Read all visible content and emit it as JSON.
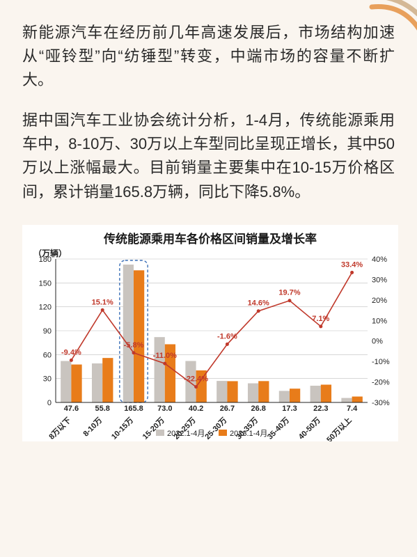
{
  "paragraphs": [
    "新能源汽车在经历前几年高速发展后，市场结构加速从“哑铃型”向“纺锤型”转变，中端市场的容量不断扩大。",
    "据中国汽车工业协会统计分析，1-4月，传统能源乘用车中，8-10万、30万以上车型同比呈现正增长，其中50万以上涨幅最大。目前销量主要集中在10-15万价格区间，累计销量165.8万辆，同比下降5.8%。"
  ],
  "chart": {
    "type": "bar+line",
    "title": "传统能源乘用车各价格区间销量及增长率",
    "y_left_unit": "（万辆）",
    "y_left_max": 180,
    "y_left_step": 30,
    "y_left_ticks": [
      0,
      30,
      60,
      90,
      120,
      150,
      180
    ],
    "y_right_max": 40,
    "y_right_min": -30,
    "y_right_step": 10,
    "y_right_ticks": [
      "40%",
      "30%",
      "20%",
      "10%",
      "0%",
      "-10%",
      "-20%",
      "-30%"
    ],
    "categories": [
      "8万以下",
      "8-10万",
      "10-15万",
      "15-20万",
      "20-25万",
      "25-30万",
      "30-35万",
      "35-40万",
      "40-50万",
      "50万以上"
    ],
    "series": [
      {
        "name": "2022.1-4月",
        "color": "#c9c4bf",
        "values": [
          52,
          49,
          173,
          82,
          52,
          27,
          24,
          14.5,
          21,
          5.6
        ]
      },
      {
        "name": "2023.1-4月",
        "color": "#e87c1a",
        "values": [
          47.6,
          55.8,
          165.8,
          73.0,
          40.2,
          26.7,
          26.8,
          17.3,
          22.3,
          7.4
        ]
      }
    ],
    "value_labels": [
      "47.6",
      "55.8",
      "165.8",
      "73.0",
      "40.2",
      "26.7",
      "26.8",
      "17.3",
      "22.3",
      "7.4"
    ],
    "growth_line": {
      "color": "#c0392b",
      "values": [
        -9.4,
        15.1,
        -5.8,
        -11.0,
        -22.4,
        -1.6,
        14.6,
        19.7,
        7.1,
        33.4
      ],
      "labels": [
        "-9.4%",
        "15.1%",
        "-5.8%",
        "-11.0%",
        "-22.4%",
        "-1.6%",
        "14.6%",
        "19.7%",
        "7.1%",
        "33.4%"
      ]
    },
    "highlight_index": 2,
    "highlight_color": "#3a6fb7",
    "bar_width": 0.34,
    "background_color": "#ffffff",
    "grid_color": "#bfbfbf"
  }
}
